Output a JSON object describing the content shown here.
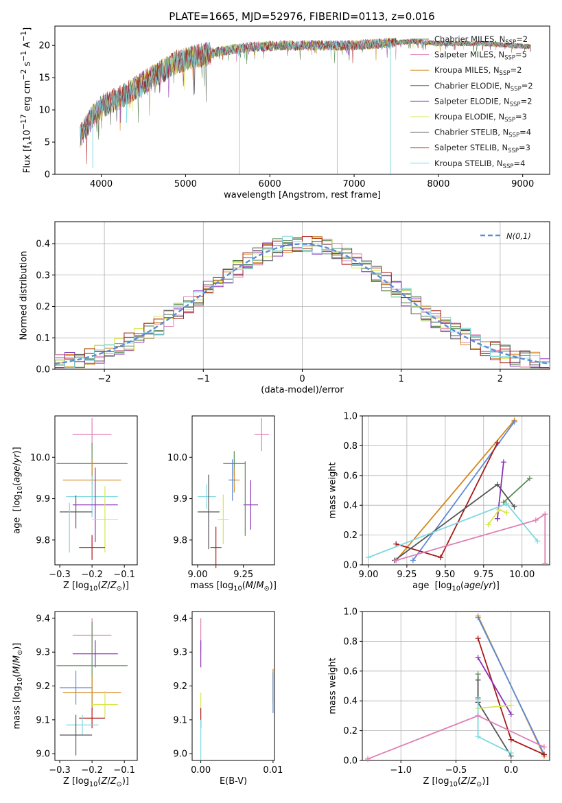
{
  "page_title": "PLATE=1665, MJD=52976, FIBERID=0113, z=0.016",
  "legend_entries": [
    {
      "name": "Chabrier MILES",
      "nssp": "2",
      "color": "#5b8c5a"
    },
    {
      "name": "Salpeter MILES",
      "nssp": "5",
      "color": "#e07fb5"
    },
    {
      "name": "Kroupa MILES",
      "nssp": "2",
      "color": "#d4861b"
    },
    {
      "name": "Chabrier ELODIE",
      "nssp": "2",
      "color": "#4a7a45"
    },
    {
      "name": "Salpeter ELODIE",
      "nssp": "2",
      "color": "#8b2fb8"
    },
    {
      "name": "Kroupa ELODIE",
      "nssp": "3",
      "color": "#d6e84a"
    },
    {
      "name": "Chabrier STELIB",
      "nssp": "4",
      "color": "#555555"
    },
    {
      "name": "Salpeter STELIB",
      "nssp": "3",
      "color": "#a81818"
    },
    {
      "name": "Kroupa STELIB",
      "nssp": "4",
      "color": "#7fd8e0"
    }
  ],
  "chart_data": [
    {
      "id": "spectrum",
      "type": "line",
      "title": "PLATE=1665, MJD=52976, FIBERID=0113, z=0.016",
      "xlabel": "wavelength [Angstrom, rest frame]",
      "ylabel": "Flux [f_λ 10^-17 erg cm^-2 s^-1 A^-1]",
      "xlim": [
        3450,
        9320
      ],
      "ylim": [
        0,
        23
      ],
      "xticks": [
        4000,
        5000,
        6000,
        7000,
        8000,
        9000
      ],
      "yticks": [
        0,
        5,
        10,
        15,
        20
      ],
      "wavelength_range": [
        3750,
        9100
      ],
      "continuum": [
        [
          3750,
          6
        ],
        [
          3900,
          9
        ],
        [
          4000,
          10.5
        ],
        [
          4300,
          12.5
        ],
        [
          4600,
          15
        ],
        [
          4900,
          17.5
        ],
        [
          5200,
          18.5
        ],
        [
          5500,
          19.3
        ],
        [
          5800,
          19.8
        ],
        [
          6200,
          20
        ],
        [
          6600,
          20
        ],
        [
          7000,
          20
        ],
        [
          7400,
          20.4
        ],
        [
          7700,
          20.6
        ],
        [
          8000,
          20.3
        ],
        [
          8500,
          20.3
        ],
        [
          9100,
          19.8
        ]
      ],
      "absorption_dips": [
        [
          5640,
          0
        ],
        [
          6800,
          0
        ],
        [
          7430,
          0
        ],
        [
          3900,
          1
        ],
        [
          4300,
          8
        ]
      ],
      "grid": false
    },
    {
      "id": "residuals",
      "type": "line",
      "xlabel": "(data-model)/error",
      "ylabel": "Normed distribution",
      "xlim": [
        -2.5,
        2.5
      ],
      "ylim": [
        0,
        0.47
      ],
      "xticks": [
        -2,
        -1,
        0,
        1,
        2
      ],
      "yticks": [
        0,
        0.1,
        0.2,
        0.3,
        0.4
      ],
      "legend": "N(0,1)",
      "legend_color": "#5b8bd8",
      "grid": true
    },
    {
      "id": "age_vs_Z",
      "type": "scatter",
      "xlabel": "Z [log10(Z/Z⊙)]",
      "ylabel": "age [log10(age/yr)]",
      "xlim": [
        -0.315,
        -0.06
      ],
      "ylim": [
        9.74,
        10.1
      ],
      "xticks": [
        -0.3,
        -0.2,
        -0.1
      ],
      "yticks": [
        9.8,
        9.9,
        10.0
      ],
      "points": [
        {
          "x": -0.2,
          "y": 10.055,
          "xerr": 0.06,
          "yerr": 0.04,
          "color": "#e07fb5"
        },
        {
          "x": -0.2,
          "y": 9.985,
          "xerr": 0.11,
          "yerr": 0.05,
          "color": "#5b8c5a"
        },
        {
          "x": -0.2,
          "y": 9.945,
          "xerr": 0.09,
          "yerr": 0.05,
          "color": "#d4861b"
        },
        {
          "x": -0.2,
          "y": 9.905,
          "xerr": 0.08,
          "yerr": 0.05,
          "color": "#7fd8e0"
        },
        {
          "x": -0.19,
          "y": 9.885,
          "xerr": 0.07,
          "yerr": 0.09,
          "color": "#8b2fb8"
        },
        {
          "x": -0.25,
          "y": 9.868,
          "xerr": 0.05,
          "yerr": 0.04,
          "color": "#555555"
        },
        {
          "x": -0.16,
          "y": 9.85,
          "xerr": 0.04,
          "yerr": 0.08,
          "color": "#d6e84a"
        },
        {
          "x": -0.2,
          "y": 9.782,
          "xerr": 0.04,
          "yerr": 0.03,
          "color": "#a81818"
        },
        {
          "x": -0.27,
          "y": 9.83,
          "xerr": 0.0,
          "yerr": 0.06,
          "color": "#7fd8e0"
        }
      ]
    },
    {
      "id": "age_vs_mass",
      "type": "scatter",
      "xlabel": "mass [log10(M/M⊙)]",
      "ylabel": "",
      "xlim": [
        8.97,
        9.42
      ],
      "ylim": [
        9.74,
        10.1
      ],
      "xticks": [
        9.0,
        9.25
      ],
      "yticks": [
        9.8,
        9.9,
        10.0
      ],
      "points": [
        {
          "x": 9.35,
          "y": 10.055,
          "xerr": 0.04,
          "yerr": 0.04,
          "color": "#e07fb5"
        },
        {
          "x": 9.2,
          "y": 9.985,
          "xerr": 0.06,
          "yerr": 0.03,
          "color": "#5b8c5a"
        },
        {
          "x": 9.2,
          "y": 9.945,
          "xerr": 0.03,
          "yerr": 0.03,
          "color": "#d4861b"
        },
        {
          "x": 9.19,
          "y": 9.945,
          "xerr": 0.02,
          "yerr": 0.05,
          "color": "#5b8bd8"
        },
        {
          "x": 9.05,
          "y": 9.905,
          "xerr": 0.05,
          "yerr": 0.03,
          "color": "#7fd8e0"
        },
        {
          "x": 9.29,
          "y": 9.885,
          "xerr": 0.04,
          "yerr": 0.06,
          "color": "#8b2fb8"
        },
        {
          "x": 9.06,
          "y": 9.868,
          "xerr": 0.06,
          "yerr": 0.09,
          "color": "#555555"
        },
        {
          "x": 9.14,
          "y": 9.85,
          "xerr": 0.03,
          "yerr": 0.06,
          "color": "#d6e84a"
        },
        {
          "x": 9.1,
          "y": 9.782,
          "xerr": 0.03,
          "yerr": 0.05,
          "color": "#a81818"
        },
        {
          "x": 9.26,
          "y": 9.9,
          "xerr": 0.0,
          "yerr": 0.09,
          "color": "#5b8c5a"
        }
      ]
    },
    {
      "id": "weight_vs_age",
      "type": "line",
      "xlabel": "age [log10(age/yr)]",
      "ylabel": "mass weight",
      "xlim": [
        8.96,
        10.18
      ],
      "ylim": [
        0,
        1
      ],
      "xticks": [
        9.0,
        9.25,
        9.5,
        9.75,
        10.0
      ],
      "yticks": [
        0.0,
        0.2,
        0.4,
        0.6,
        0.8,
        1.0
      ],
      "series": [
        {
          "color": "#d4861b",
          "x": [
            9.18,
            9.95
          ],
          "y": [
            0.03,
            0.97
          ]
        },
        {
          "color": "#5b8bd8",
          "x": [
            9.29,
            9.95
          ],
          "y": [
            0.03,
            0.96
          ]
        },
        {
          "color": "#a81818",
          "x": [
            9.18,
            9.47,
            9.84
          ],
          "y": [
            0.14,
            0.05,
            0.82
          ]
        },
        {
          "color": "#8b2fb8",
          "x": [
            9.84,
            9.88
          ],
          "y": [
            0.31,
            0.69
          ]
        },
        {
          "color": "#5b8c5a",
          "x": [
            9.88,
            10.05
          ],
          "y": [
            0.42,
            0.58
          ]
        },
        {
          "color": "#555555",
          "x": [
            9.17,
            9.84,
            9.95
          ],
          "y": [
            0.03,
            0.54,
            0.39
          ]
        },
        {
          "color": "#d6e84a",
          "x": [
            9.78,
            9.85,
            9.9
          ],
          "y": [
            0.27,
            0.37,
            0.35
          ]
        },
        {
          "color": "#7fd8e0",
          "x": [
            9.0,
            9.9,
            10.1
          ],
          "y": [
            0.05,
            0.41,
            0.16
          ]
        },
        {
          "color": "#e07fb5",
          "x": [
            9.18,
            10.09,
            10.15,
            10.15
          ],
          "y": [
            0.03,
            0.3,
            0.34,
            0.01
          ]
        }
      ],
      "grid": true
    },
    {
      "id": "mass_vs_Z",
      "type": "scatter",
      "xlabel": "Z [log10(Z/Z⊙)]",
      "ylabel": "mass [log10(M/M⊙)]",
      "xlim": [
        -0.315,
        -0.06
      ],
      "ylim": [
        8.98,
        9.42
      ],
      "xticks": [
        -0.3,
        -0.2,
        -0.1
      ],
      "yticks": [
        9.0,
        9.1,
        9.2,
        9.3,
        9.4
      ],
      "points": [
        {
          "x": -0.2,
          "y": 9.35,
          "xerr": 0.06,
          "yerr": 0.05,
          "color": "#e07fb5"
        },
        {
          "x": -0.19,
          "y": 9.295,
          "xerr": 0.07,
          "yerr": 0.04,
          "color": "#8b2fb8"
        },
        {
          "x": -0.2,
          "y": 9.26,
          "xerr": 0.11,
          "yerr": 0.13,
          "color": "#5b8c5a"
        },
        {
          "x": -0.25,
          "y": 9.195,
          "xerr": 0.05,
          "yerr": 0.05,
          "color": "#5b8bd8"
        },
        {
          "x": -0.2,
          "y": 9.18,
          "xerr": 0.09,
          "yerr": 0.05,
          "color": "#d4861b"
        },
        {
          "x": -0.16,
          "y": 9.145,
          "xerr": 0.04,
          "yerr": 0.04,
          "color": "#d6e84a"
        },
        {
          "x": -0.2,
          "y": 9.105,
          "xerr": 0.04,
          "yerr": 0.03,
          "color": "#a81818"
        },
        {
          "x": -0.23,
          "y": 9.085,
          "xerr": 0.05,
          "yerr": 0.03,
          "color": "#7fd8e0"
        },
        {
          "x": -0.25,
          "y": 9.055,
          "xerr": 0.05,
          "yerr": 0.06,
          "color": "#555555"
        }
      ]
    },
    {
      "id": "mass_vs_EBV",
      "type": "scatter",
      "xlabel": "E(B-V)",
      "ylabel": "",
      "xlim": [
        -0.0012,
        0.0102
      ],
      "ylim": [
        8.98,
        9.42
      ],
      "xticks": [
        0.0,
        0.01
      ],
      "yticks": [
        9.0,
        9.1,
        9.2,
        9.3,
        9.4
      ],
      "points": [
        {
          "x": 0.0,
          "y": 9.35,
          "xerr": 0.0,
          "yerr": 0.05,
          "color": "#e07fb5"
        },
        {
          "x": 0.0,
          "y": 9.295,
          "xerr": 0.0,
          "yerr": 0.04,
          "color": "#8b2fb8"
        },
        {
          "x": 0.0,
          "y": 9.15,
          "xerr": 0.0,
          "yerr": 0.03,
          "color": "#d6e84a"
        },
        {
          "x": 0.0,
          "y": 9.105,
          "xerr": 0.0,
          "yerr": 0.03,
          "color": "#a81818"
        },
        {
          "x": 0.0,
          "y": 9.04,
          "xerr": 0.0,
          "yerr": 0.06,
          "color": "#7fd8e0"
        },
        {
          "x": 0.01,
          "y": 9.2,
          "xerr": 0.0,
          "yerr": 0.05,
          "color": "#d4861b"
        },
        {
          "x": 0.01,
          "y": 9.18,
          "xerr": 0.0,
          "yerr": 0.06,
          "color": "#5b8bd8"
        }
      ]
    },
    {
      "id": "weight_vs_Z",
      "type": "line",
      "xlabel": "Z [log10(Z/Z⊙)]",
      "ylabel": "mass weight",
      "xlim": [
        -1.35,
        0.35
      ],
      "ylim": [
        0,
        1
      ],
      "xticks": [
        -1.0,
        -0.5,
        0.0
      ],
      "yticks": [
        0.0,
        0.2,
        0.4,
        0.6,
        0.8,
        1.0
      ],
      "series": [
        {
          "color": "#d4861b",
          "x": [
            -0.3,
            0.3
          ],
          "y": [
            0.97,
            0.03
          ]
        },
        {
          "color": "#5b8bd8",
          "x": [
            -0.3,
            0.3
          ],
          "y": [
            0.96,
            0.04
          ]
        },
        {
          "color": "#a81818",
          "x": [
            -0.3,
            0.0,
            0.3
          ],
          "y": [
            0.82,
            0.14,
            0.04
          ]
        },
        {
          "color": "#8b2fb8",
          "x": [
            -0.3,
            0.0
          ],
          "y": [
            0.69,
            0.31
          ]
        },
        {
          "color": "#5b8c5a",
          "x": [
            -0.3,
            -0.3
          ],
          "y": [
            0.58,
            0.42
          ]
        },
        {
          "color": "#555555",
          "x": [
            -0.3,
            -0.3,
            0.0
          ],
          "y": [
            0.54,
            0.39,
            0.03
          ]
        },
        {
          "color": "#d6e84a",
          "x": [
            -0.3,
            0.0
          ],
          "y": [
            0.35,
            0.37
          ]
        },
        {
          "color": "#7fd8e0",
          "x": [
            -0.3,
            -0.3,
            0.0
          ],
          "y": [
            0.41,
            0.16,
            0.05
          ]
        },
        {
          "color": "#e07fb5",
          "x": [
            -1.3,
            -0.3,
            0.3
          ],
          "y": [
            0.01,
            0.3,
            0.09
          ]
        }
      ],
      "grid": true
    }
  ]
}
